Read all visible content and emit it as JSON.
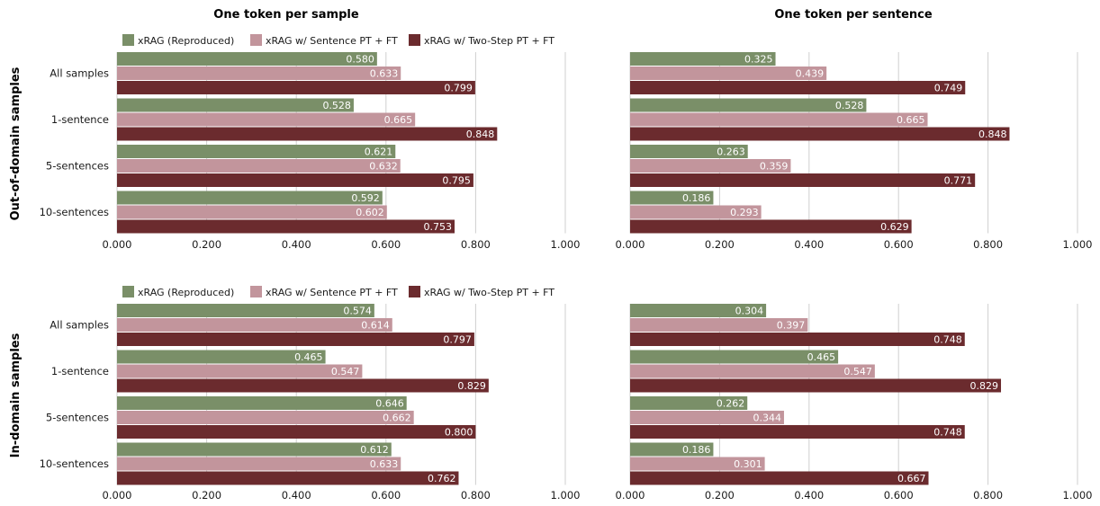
{
  "column_titles": [
    "One token per sample",
    "One token per sentence"
  ],
  "row_titles": [
    "Out-of-domain samples",
    "In-domain samples"
  ],
  "legend": [
    {
      "name": "xRAG (Reproduced)",
      "color": "#7a8f68"
    },
    {
      "name": "xRAG w/ Sentence PT + FT",
      "color": "#c2959c"
    },
    {
      "name": "xRAG w/ Two-Step PT + FT",
      "color": "#6b2b2e"
    }
  ],
  "chart_data": [
    {
      "type": "bar",
      "orientation": "horizontal",
      "panel": "Out-of-domain samples / One token per sample",
      "categories": [
        "All samples",
        "1-sentence",
        "5-sentences",
        "10-sentences"
      ],
      "series": [
        {
          "name": "xRAG (Reproduced)",
          "values": [
            0.58,
            0.528,
            0.621,
            0.592
          ]
        },
        {
          "name": "xRAG w/ Sentence PT + FT",
          "values": [
            0.633,
            0.665,
            0.632,
            0.602
          ]
        },
        {
          "name": "xRAG w/ Two-Step PT + FT",
          "values": [
            0.799,
            0.848,
            0.795,
            0.753
          ]
        }
      ],
      "xlim": [
        0,
        1
      ],
      "xticks": [
        "0.000",
        "0.200",
        "0.400",
        "0.600",
        "0.800",
        "1.000"
      ],
      "grid": true,
      "legend": true
    },
    {
      "type": "bar",
      "orientation": "horizontal",
      "panel": "Out-of-domain samples / One token per sentence",
      "categories": [
        "All samples",
        "1-sentence",
        "5-sentences",
        "10-sentences"
      ],
      "series": [
        {
          "name": "xRAG (Reproduced)",
          "values": [
            0.325,
            0.528,
            0.263,
            0.186
          ]
        },
        {
          "name": "xRAG w/ Sentence PT + FT",
          "values": [
            0.439,
            0.665,
            0.359,
            0.293
          ]
        },
        {
          "name": "xRAG w/ Two-Step PT + FT",
          "values": [
            0.749,
            0.848,
            0.771,
            0.629
          ]
        }
      ],
      "xlim": [
        0,
        1
      ],
      "xticks": [
        "0.000",
        "0.200",
        "0.400",
        "0.600",
        "0.800",
        "1.000"
      ],
      "grid": true,
      "legend": false
    },
    {
      "type": "bar",
      "orientation": "horizontal",
      "panel": "In-domain samples / One token per sample",
      "categories": [
        "All samples",
        "1-sentence",
        "5-sentences",
        "10-sentences"
      ],
      "series": [
        {
          "name": "xRAG (Reproduced)",
          "values": [
            0.574,
            0.465,
            0.646,
            0.612
          ]
        },
        {
          "name": "xRAG w/ Sentence PT + FT",
          "values": [
            0.614,
            0.547,
            0.662,
            0.633
          ]
        },
        {
          "name": "xRAG w/ Two-Step PT + FT",
          "values": [
            0.797,
            0.829,
            0.8,
            0.762
          ]
        }
      ],
      "xlim": [
        0,
        1
      ],
      "xticks": [
        "0.000",
        "0.200",
        "0.400",
        "0.600",
        "0.800",
        "1.000"
      ],
      "grid": true,
      "legend": true
    },
    {
      "type": "bar",
      "orientation": "horizontal",
      "panel": "In-domain samples / One token per sentence",
      "categories": [
        "All samples",
        "1-sentence",
        "5-sentences",
        "10-sentences"
      ],
      "series": [
        {
          "name": "xRAG (Reproduced)",
          "values": [
            0.304,
            0.465,
            0.262,
            0.186
          ]
        },
        {
          "name": "xRAG w/ Sentence PT + FT",
          "values": [
            0.397,
            0.547,
            0.344,
            0.301
          ]
        },
        {
          "name": "xRAG w/ Two-Step PT + FT",
          "values": [
            0.748,
            0.829,
            0.748,
            0.667
          ]
        }
      ],
      "xlim": [
        0,
        1
      ],
      "xticks": [
        "0.000",
        "0.200",
        "0.400",
        "0.600",
        "0.800",
        "1.000"
      ],
      "grid": true,
      "legend": false
    }
  ]
}
